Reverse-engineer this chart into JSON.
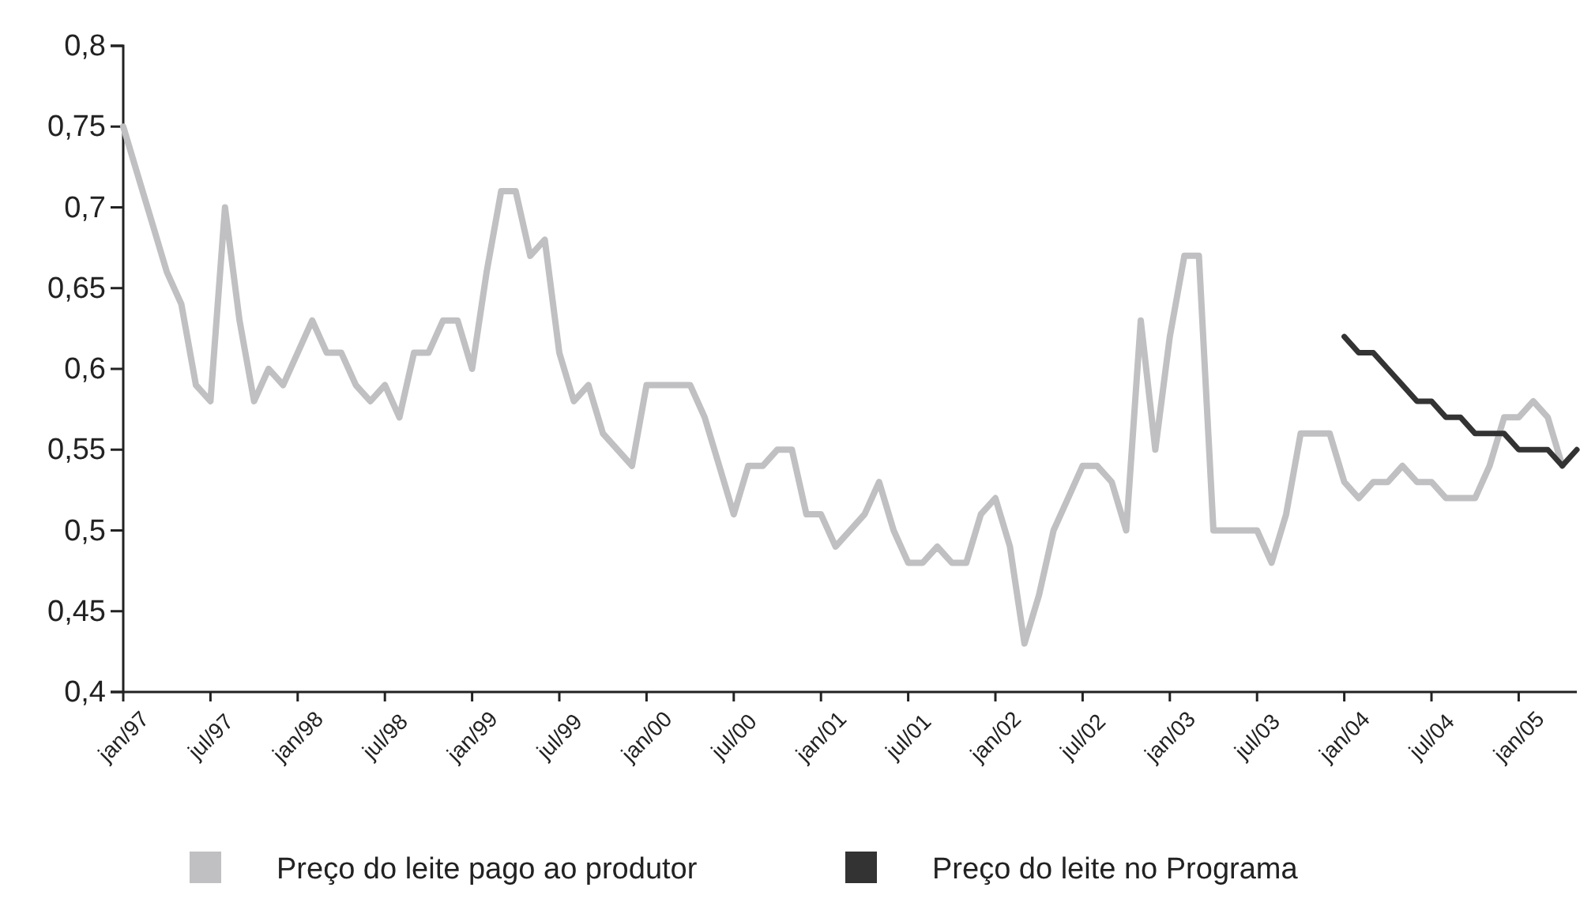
{
  "chart_data": {
    "type": "line",
    "categories": [
      "jan/97",
      null,
      null,
      null,
      null,
      null,
      "jul/97",
      null,
      null,
      null,
      null,
      null,
      "jan/98",
      null,
      null,
      null,
      null,
      null,
      "jul/98",
      null,
      null,
      null,
      null,
      null,
      "jan/99",
      null,
      null,
      null,
      null,
      null,
      "jul/99",
      null,
      null,
      null,
      null,
      null,
      "jan/00",
      null,
      null,
      null,
      null,
      null,
      "jul/00",
      null,
      null,
      null,
      null,
      null,
      "jan/01",
      null,
      null,
      null,
      null,
      null,
      "jul/01",
      null,
      null,
      null,
      null,
      null,
      "jan/02",
      null,
      null,
      null,
      null,
      null,
      "jul/02",
      null,
      null,
      null,
      null,
      null,
      "jan/03",
      null,
      null,
      null,
      null,
      null,
      "jul/03",
      null,
      null,
      null,
      null,
      null,
      "jan/04",
      null,
      null,
      null,
      null,
      null,
      "jul/04",
      null,
      null,
      null,
      null,
      null,
      "jan/05",
      null,
      null,
      null,
      null
    ],
    "series": [
      {
        "name": "Preço do leite pago ao produtor",
        "color": "#c0c0c2",
        "values": [
          0.75,
          0.72,
          0.69,
          0.66,
          0.64,
          0.59,
          0.58,
          0.7,
          0.63,
          0.58,
          0.6,
          0.59,
          0.61,
          0.63,
          0.61,
          0.61,
          0.59,
          0.58,
          0.59,
          0.57,
          0.61,
          0.61,
          0.63,
          0.63,
          0.6,
          0.66,
          0.71,
          0.71,
          0.67,
          0.68,
          0.61,
          0.58,
          0.59,
          0.56,
          0.55,
          0.54,
          0.59,
          0.59,
          0.59,
          0.59,
          0.57,
          0.54,
          0.51,
          0.54,
          0.54,
          0.55,
          0.55,
          0.51,
          0.51,
          0.49,
          0.5,
          0.51,
          0.53,
          0.5,
          0.48,
          0.48,
          0.49,
          0.48,
          0.48,
          0.51,
          0.52,
          0.49,
          0.43,
          0.46,
          0.5,
          0.52,
          0.54,
          0.54,
          0.53,
          0.5,
          0.63,
          0.55,
          0.62,
          0.67,
          0.67,
          0.5,
          0.5,
          0.5,
          0.5,
          0.48,
          0.51,
          0.56,
          0.56,
          0.56,
          0.53,
          0.52,
          0.53,
          0.53,
          0.54,
          0.53,
          0.53,
          0.52,
          0.52,
          0.52,
          0.54,
          0.57,
          0.57,
          0.58,
          0.57,
          0.54,
          null
        ]
      },
      {
        "name": "Preço do leite no Programa",
        "color": "#333333",
        "values": [
          null,
          null,
          null,
          null,
          null,
          null,
          null,
          null,
          null,
          null,
          null,
          null,
          null,
          null,
          null,
          null,
          null,
          null,
          null,
          null,
          null,
          null,
          null,
          null,
          null,
          null,
          null,
          null,
          null,
          null,
          null,
          null,
          null,
          null,
          null,
          null,
          null,
          null,
          null,
          null,
          null,
          null,
          null,
          null,
          null,
          null,
          null,
          null,
          null,
          null,
          null,
          null,
          null,
          null,
          null,
          null,
          null,
          null,
          null,
          null,
          null,
          null,
          null,
          null,
          null,
          null,
          null,
          null,
          null,
          null,
          null,
          null,
          null,
          null,
          null,
          null,
          null,
          null,
          null,
          null,
          null,
          null,
          null,
          null,
          0.62,
          0.61,
          0.61,
          0.6,
          0.59,
          0.58,
          0.58,
          0.57,
          0.57,
          0.56,
          0.56,
          0.56,
          0.55,
          0.55,
          0.55,
          0.54,
          0.55
        ]
      }
    ],
    "ylim": [
      0.4,
      0.8
    ],
    "yticks": [
      {
        "value": 0.4,
        "label": "0,4"
      },
      {
        "value": 0.45,
        "label": "0,45"
      },
      {
        "value": 0.5,
        "label": "0,5"
      },
      {
        "value": 0.55,
        "label": "0,55"
      },
      {
        "value": 0.6,
        "label": "0,6"
      },
      {
        "value": 0.65,
        "label": "0,65"
      },
      {
        "value": 0.7,
        "label": "0,7"
      },
      {
        "value": 0.75,
        "label": "0,75"
      },
      {
        "value": 0.8,
        "label": "0,8"
      }
    ],
    "grid": false,
    "legend": "bottom",
    "marker": "none",
    "line_style": "solid"
  }
}
